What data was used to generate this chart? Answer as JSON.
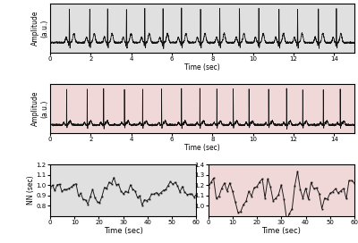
{
  "fig_width": 4.0,
  "fig_height": 2.72,
  "dpi": 100,
  "bg_gray": "#e0e0e0",
  "bg_pink": "#f0d8d8",
  "ecg_color": "#111111",
  "nn_color": "#111111",
  "xlabel": "Time (sec)",
  "ylabel_amplitude": "Amplitude\n(a.u.)",
  "ylabel_nn": "NN (sec)",
  "ecg_xlim": [
    0,
    15
  ],
  "ecg_xticks": [
    0,
    2,
    4,
    6,
    8,
    10,
    12,
    14
  ],
  "nn_xlim": [
    0,
    60
  ],
  "nn_xticks": [
    0,
    10,
    20,
    30,
    40,
    50,
    60
  ],
  "nn1_ylim": [
    0.7,
    1.2
  ],
  "nn1_yticks": [
    0.8,
    0.9,
    1.0,
    1.1,
    1.2
  ],
  "nn2_ylim": [
    0.9,
    1.4
  ],
  "nn2_yticks": [
    1.0,
    1.1,
    1.2,
    1.3,
    1.4
  ],
  "tick_labelsize": 5,
  "axis_labelsize": 5.5,
  "linewidth_ecg": 0.55,
  "linewidth_nn": 0.65,
  "marker_size": 1.3
}
